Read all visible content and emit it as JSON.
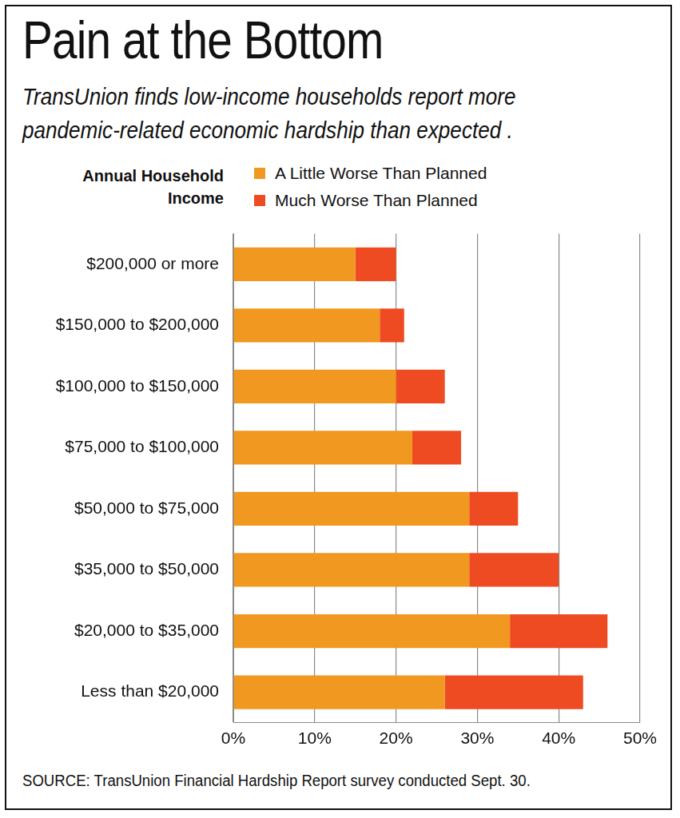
{
  "chart_data": {
    "type": "bar",
    "title": "Pain at the Bottom",
    "subtitle": "TransUnion finds low-income households report more pandemic-related economic hardship than expected .",
    "y_label": "Annual Household Income",
    "source": "SOURCE: TransUnion Financial Hardship Report survey conducted Sept. 30.",
    "orientation": "horizontal",
    "stacked": true,
    "grid": true,
    "legend": "top",
    "categories": [
      "$200,000 or more",
      "$150,000 to $200,000",
      "$100,000 to $150,000",
      "$75,000 to $100,000",
      "$50,000 to $75,000",
      "$35,000 to $50,000",
      "$20,000 to $35,000",
      "Less than $20,000"
    ],
    "series": [
      {
        "name": "A Little Worse Than Planned",
        "color": "#f0981f",
        "values": [
          15,
          18,
          20,
          22,
          29,
          29,
          34,
          26
        ]
      },
      {
        "name": "Much Worse Than Planned",
        "color": "#ee4b23",
        "values": [
          5,
          3,
          6,
          6,
          6,
          11,
          12,
          17
        ]
      }
    ],
    "xlim": [
      0,
      50
    ],
    "xticks": [
      {
        "value": 0,
        "label": "0%"
      },
      {
        "value": 10,
        "label": "10%"
      },
      {
        "value": 20,
        "label": "20%"
      },
      {
        "value": 30,
        "label": "30%"
      },
      {
        "value": 40,
        "label": "40%"
      },
      {
        "value": 50,
        "label": "50%"
      }
    ]
  }
}
